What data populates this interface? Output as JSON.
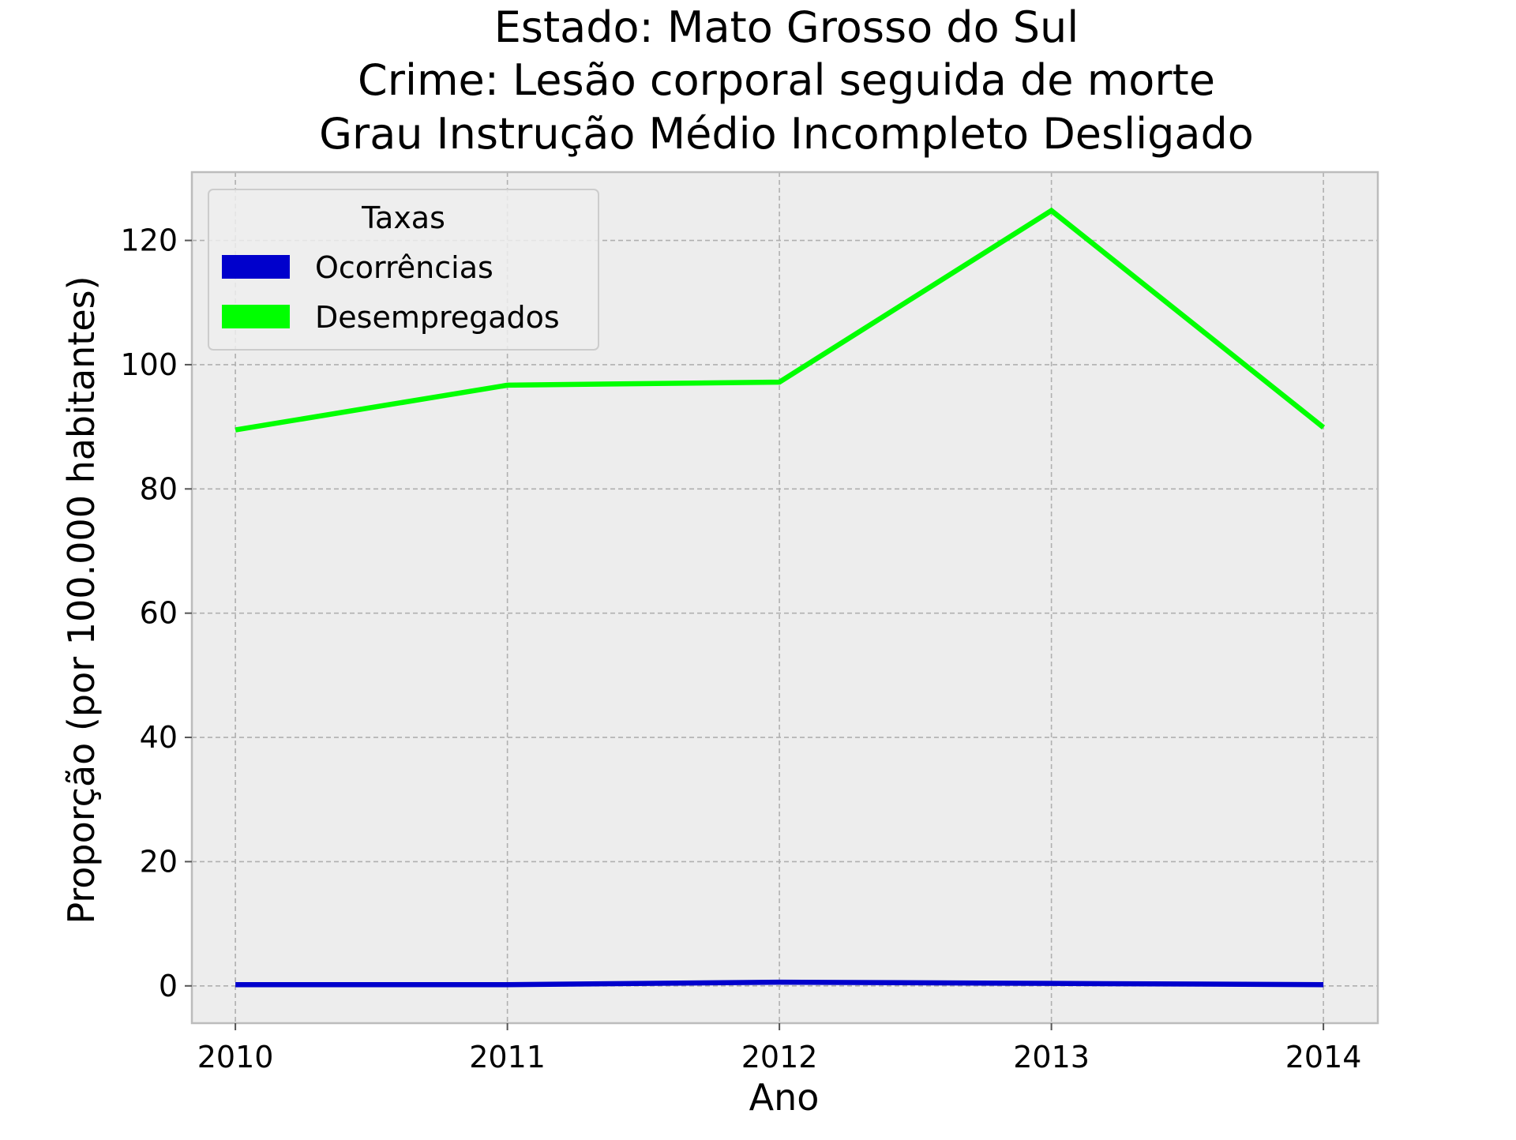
{
  "chart_data": {
    "type": "line",
    "title_lines": [
      "Estado: Mato Grosso do Sul",
      "Crime: Lesão corporal seguida de morte",
      "Grau Instrução  Médio Incompleto   Desligado"
    ],
    "xlabel": "Ano",
    "ylabel": "Proporção (por 100.000 habitantes)",
    "x": [
      2010,
      2011,
      2012,
      2013,
      2014
    ],
    "x_tick_labels": [
      "2010",
      "2011",
      "2012",
      "2013",
      "2014"
    ],
    "y_ticks": [
      0,
      20,
      40,
      60,
      80,
      100,
      120
    ],
    "y_tick_labels": [
      "0",
      "20",
      "40",
      "60",
      "80",
      "100",
      "120"
    ],
    "xlim": [
      2009.84,
      2014.2
    ],
    "ylim": [
      -6,
      131
    ],
    "grid": true,
    "legend": {
      "title": "Taxas",
      "placement": "upper-left"
    },
    "series": [
      {
        "name": "Ocorrências",
        "color": "#0000cc",
        "values": [
          0.2,
          0.2,
          0.6,
          0.4,
          0.2
        ]
      },
      {
        "name": "Desempregados",
        "color": "#00ff00",
        "values": [
          89.5,
          96.7,
          97.2,
          124.8,
          89.9
        ]
      }
    ],
    "colors": {
      "plot_background": "#ededed",
      "axes_edge": "#bcbcbc",
      "grid": "#b0b0b0"
    }
  }
}
